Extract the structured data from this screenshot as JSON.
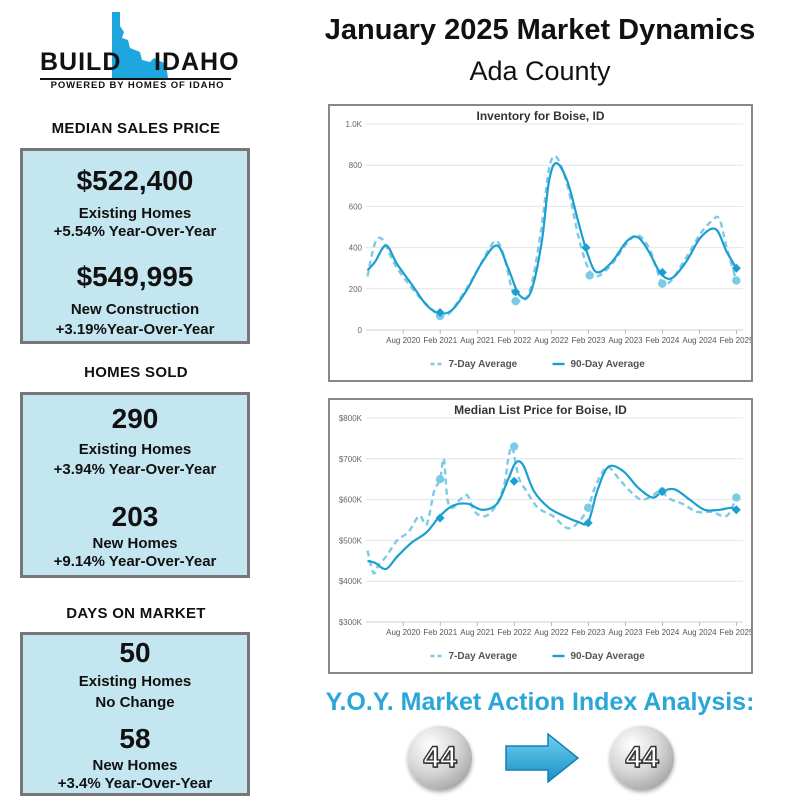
{
  "logo": {
    "left_word": "BUILD",
    "right_word": "IDAHO",
    "tagline": "POWERED BY HOMES OF IDAHO",
    "state_color": "#1ea7de"
  },
  "header": {
    "title": "January 2025 Market Dynamics",
    "subtitle": "Ada County"
  },
  "sections": {
    "median_price": {
      "title": "MEDIAN SALES PRICE",
      "existing_value": "$522,400",
      "existing_label": "Existing Homes",
      "existing_change": "+5.54% Year-Over-Year",
      "new_value": "$549,995",
      "new_label": "New Construction",
      "new_change": "+3.19%Year-Over-Year"
    },
    "homes_sold": {
      "title": "HOMES SOLD",
      "existing_value": "290",
      "existing_label": "Existing Homes",
      "existing_change": "+3.94% Year-Over-Year",
      "new_value": "203",
      "new_label": "New Homes",
      "new_change": "+9.14% Year-Over-Year"
    },
    "days_on_market": {
      "title": "DAYS ON MARKET",
      "existing_value": "50",
      "existing_label": "Existing Homes",
      "existing_change": "No Change",
      "new_value": "58",
      "new_label": "New Homes",
      "new_change": "+3.4% Year-Over-Year"
    }
  },
  "market_action": {
    "title": "Y.O.Y. Market Action Index Analysis:",
    "previous": "44",
    "current": "44",
    "arrow_color": "#1ea7de"
  },
  "colors": {
    "line_dark": "#1a9fd0",
    "line_light": "#7ccae5",
    "box_fill": "#c4e6f1"
  },
  "chart_data": [
    {
      "type": "line",
      "title": "Inventory for Boise, ID",
      "xlabel": "",
      "ylabel": "",
      "ylim": [
        0,
        1000
      ],
      "ytick_values": [
        0,
        200,
        400,
        600,
        800,
        1000
      ],
      "ytick_labels": [
        "0",
        "200",
        "400",
        "600",
        "800",
        "1.0K"
      ],
      "xtick_values": [
        2020.583,
        2021.083,
        2021.583,
        2022.083,
        2022.583,
        2023.083,
        2023.583,
        2024.083,
        2024.583,
        2025.083
      ],
      "xtick_labels": [
        "Aug 2020",
        "Feb 2021",
        "Aug 2021",
        "Feb 2022",
        "Aug 2022",
        "Feb 2023",
        "Aug 2023",
        "Feb 2024",
        "Aug 2024",
        "Feb 2025"
      ],
      "xlim": [
        2020.08,
        2025.17
      ],
      "legend": [
        "7-Day Average",
        "90-Day Average"
      ],
      "legend_position": "bottom",
      "series": [
        {
          "name": "7-Day Average",
          "style": "dashed",
          "x": [
            2020.1,
            2020.2,
            2020.3,
            2020.45,
            2020.6,
            2020.8,
            2021.0,
            2021.08,
            2021.2,
            2021.4,
            2021.6,
            2021.75,
            2021.85,
            2021.95,
            2022.05,
            2022.15,
            2022.3,
            2022.45,
            2022.55,
            2022.65,
            2022.8,
            2022.95,
            2023.08,
            2023.2,
            2023.4,
            2023.6,
            2023.75,
            2023.9,
            2024.0,
            2024.08,
            2024.2,
            2024.4,
            2024.6,
            2024.75,
            2024.85,
            2024.95,
            2025.08
          ],
          "y": [
            260,
            420,
            440,
            330,
            250,
            160,
            90,
            70,
            80,
            180,
            300,
            400,
            430,
            350,
            200,
            140,
            200,
            500,
            780,
            840,
            700,
            450,
            300,
            260,
            320,
            420,
            460,
            400,
            300,
            230,
            240,
            350,
            470,
            530,
            540,
            400,
            240
          ]
        },
        {
          "name": "90-Day Average",
          "style": "solid",
          "x": [
            2020.1,
            2020.2,
            2020.35,
            2020.5,
            2020.7,
            2020.9,
            2021.08,
            2021.25,
            2021.45,
            2021.65,
            2021.85,
            2022.0,
            2022.15,
            2022.3,
            2022.45,
            2022.55,
            2022.65,
            2022.8,
            2022.95,
            2023.08,
            2023.2,
            2023.4,
            2023.6,
            2023.75,
            2023.9,
            2024.05,
            2024.2,
            2024.4,
            2024.6,
            2024.8,
            2024.95,
            2025.08
          ],
          "y": [
            290,
            330,
            410,
            320,
            220,
            120,
            80,
            100,
            200,
            330,
            410,
            300,
            170,
            180,
            420,
            720,
            810,
            720,
            520,
            360,
            280,
            330,
            430,
            450,
            380,
            280,
            250,
            330,
            450,
            490,
            380,
            300
          ]
        }
      ],
      "markers": [
        {
          "series": "7-Day Average",
          "x": 2021.08,
          "y": 68
        },
        {
          "series": "7-Day Average",
          "x": 2022.1,
          "y": 140
        },
        {
          "series": "7-Day Average",
          "x": 2023.1,
          "y": 265
        },
        {
          "series": "7-Day Average",
          "x": 2024.08,
          "y": 225
        },
        {
          "series": "7-Day Average",
          "x": 2025.08,
          "y": 240
        },
        {
          "series": "90-Day Average",
          "x": 2021.08,
          "y": 85
        },
        {
          "series": "90-Day Average",
          "x": 2022.1,
          "y": 185
        },
        {
          "series": "90-Day Average",
          "x": 2023.05,
          "y": 400
        },
        {
          "series": "90-Day Average",
          "x": 2024.08,
          "y": 280
        },
        {
          "series": "90-Day Average",
          "x": 2025.08,
          "y": 300
        }
      ]
    },
    {
      "type": "line",
      "title": "Median List Price for Boise, ID",
      "xlabel": "",
      "ylabel": "",
      "ylim": [
        300000,
        800000
      ],
      "ytick_values": [
        300000,
        400000,
        500000,
        600000,
        700000,
        800000
      ],
      "ytick_labels": [
        "$300K",
        "$400K",
        "$500K",
        "$600K",
        "$700K",
        "$800K"
      ],
      "xtick_values": [
        2020.583,
        2021.083,
        2021.583,
        2022.083,
        2022.583,
        2023.083,
        2023.583,
        2024.083,
        2024.583,
        2025.083
      ],
      "xtick_labels": [
        "Aug 2020",
        "Feb 2021",
        "Aug 2021",
        "Feb 2022",
        "Aug 2022",
        "Feb 2023",
        "Aug 2023",
        "Feb 2024",
        "Aug 2024",
        "Feb 2025"
      ],
      "xlim": [
        2020.08,
        2025.17
      ],
      "legend": [
        "7-Day Average",
        "90-Day Average"
      ],
      "legend_position": "bottom",
      "series": [
        {
          "name": "7-Day Average",
          "style": "dashed",
          "x": [
            2020.1,
            2020.18,
            2020.25,
            2020.35,
            2020.5,
            2020.65,
            2020.8,
            2020.9,
            2021.0,
            2021.08,
            2021.13,
            2021.18,
            2021.25,
            2021.35,
            2021.45,
            2021.55,
            2021.7,
            2021.85,
            2021.95,
            2022.0,
            2022.05,
            2022.1,
            2022.15,
            2022.25,
            2022.4,
            2022.6,
            2022.8,
            2022.95,
            2023.08,
            2023.15,
            2023.25,
            2023.35,
            2023.5,
            2023.65,
            2023.8,
            2023.95,
            2024.05,
            2024.2,
            2024.35,
            2024.55,
            2024.75,
            2024.95,
            2025.08
          ],
          "y": [
            475000,
            420000,
            440000,
            460000,
            500000,
            520000,
            560000,
            540000,
            620000,
            650000,
            700000,
            600000,
            580000,
            600000,
            610000,
            570000,
            560000,
            590000,
            640000,
            700000,
            730000,
            690000,
            650000,
            620000,
            580000,
            560000,
            530000,
            545000,
            580000,
            620000,
            660000,
            680000,
            650000,
            620000,
            600000,
            610000,
            620000,
            600000,
            590000,
            570000,
            570000,
            560000,
            605000
          ]
        },
        {
          "name": "90-Day Average",
          "style": "solid",
          "x": [
            2020.1,
            2020.2,
            2020.35,
            2020.5,
            2020.7,
            2020.9,
            2021.08,
            2021.25,
            2021.45,
            2021.65,
            2021.85,
            2022.0,
            2022.1,
            2022.2,
            2022.35,
            2022.55,
            2022.75,
            2022.95,
            2023.08,
            2023.2,
            2023.35,
            2023.55,
            2023.75,
            2023.95,
            2024.08,
            2024.25,
            2024.45,
            2024.65,
            2024.85,
            2025.0,
            2025.08
          ],
          "y": [
            450000,
            445000,
            430000,
            460000,
            495000,
            520000,
            560000,
            585000,
            590000,
            575000,
            590000,
            650000,
            690000,
            685000,
            620000,
            580000,
            560000,
            545000,
            545000,
            620000,
            680000,
            670000,
            630000,
            605000,
            620000,
            625000,
            600000,
            575000,
            575000,
            580000,
            575000
          ]
        }
      ],
      "markers": [
        {
          "series": "7-Day Average",
          "x": 2021.08,
          "y": 650000
        },
        {
          "series": "7-Day Average",
          "x": 2022.08,
          "y": 730000
        },
        {
          "series": "7-Day Average",
          "x": 2023.08,
          "y": 580000
        },
        {
          "series": "7-Day Average",
          "x": 2024.08,
          "y": 620000
        },
        {
          "series": "7-Day Average",
          "x": 2025.08,
          "y": 605000
        },
        {
          "series": "90-Day Average",
          "x": 2021.08,
          "y": 555000
        },
        {
          "series": "90-Day Average",
          "x": 2022.08,
          "y": 645000
        },
        {
          "series": "90-Day Average",
          "x": 2023.08,
          "y": 543000
        },
        {
          "series": "90-Day Average",
          "x": 2024.08,
          "y": 620000
        },
        {
          "series": "90-Day Average",
          "x": 2025.08,
          "y": 575000
        }
      ]
    }
  ]
}
